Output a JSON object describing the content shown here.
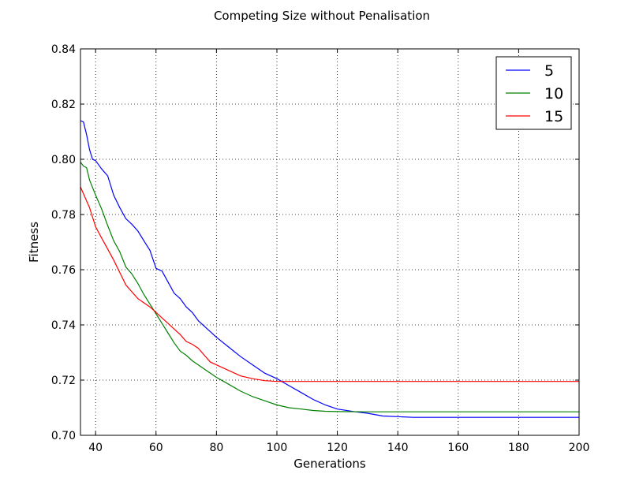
{
  "chart_data": {
    "type": "line",
    "title": "Competing Size without Penalisation",
    "xlabel": "Generations",
    "ylabel": "Fitness",
    "xlim": [
      35,
      200
    ],
    "ylim": [
      0.7,
      0.84
    ],
    "xticks": [
      40,
      60,
      80,
      100,
      120,
      140,
      160,
      180,
      200
    ],
    "yticks": [
      0.7,
      0.72,
      0.74,
      0.76,
      0.78,
      0.8,
      0.82,
      0.84
    ],
    "xtick_labels": [
      "40",
      "60",
      "80",
      "100",
      "120",
      "140",
      "160",
      "180",
      "200"
    ],
    "ytick_labels": [
      "0.70",
      "0.72",
      "0.74",
      "0.76",
      "0.78",
      "0.80",
      "0.82",
      "0.84"
    ],
    "grid": true,
    "legend_position": "top-right",
    "series": [
      {
        "name": "5",
        "color": "#0000ff",
        "x": [
          35,
          36,
          37,
          38,
          39,
          40,
          42,
          44,
          46,
          48,
          50,
          52,
          54,
          56,
          58,
          60,
          62,
          64,
          66,
          68,
          70,
          72,
          74,
          76,
          78,
          80,
          84,
          88,
          92,
          96,
          100,
          104,
          108,
          112,
          116,
          120,
          126,
          130,
          135,
          145,
          160,
          180,
          200
        ],
        "y": [
          0.814,
          0.8135,
          0.809,
          0.8035,
          0.8,
          0.7995,
          0.7965,
          0.794,
          0.787,
          0.7825,
          0.7785,
          0.7765,
          0.774,
          0.7705,
          0.767,
          0.7605,
          0.7595,
          0.7555,
          0.7515,
          0.7495,
          0.7465,
          0.7445,
          0.7415,
          0.7395,
          0.7375,
          0.7355,
          0.732,
          0.7285,
          0.7255,
          0.7225,
          0.7205,
          0.718,
          0.7155,
          0.713,
          0.711,
          0.7095,
          0.7085,
          0.708,
          0.707,
          0.7065,
          0.7065,
          0.7065,
          0.7065
        ]
      },
      {
        "name": "10",
        "color": "#008000",
        "x": [
          35,
          36,
          37,
          38,
          40,
          42,
          44,
          46,
          48,
          50,
          52,
          54,
          56,
          58,
          60,
          62,
          64,
          66,
          68,
          70,
          72,
          74,
          76,
          78,
          80,
          84,
          88,
          92,
          96,
          100,
          104,
          108,
          112,
          116,
          120,
          130,
          140,
          160,
          180,
          200
        ],
        "y": [
          0.799,
          0.7975,
          0.797,
          0.7925,
          0.787,
          0.782,
          0.776,
          0.7705,
          0.7665,
          0.761,
          0.7585,
          0.755,
          0.751,
          0.7475,
          0.744,
          0.7405,
          0.737,
          0.7335,
          0.7305,
          0.729,
          0.727,
          0.7255,
          0.724,
          0.7225,
          0.721,
          0.7185,
          0.716,
          0.714,
          0.7125,
          0.711,
          0.71,
          0.7095,
          0.709,
          0.7087,
          0.7086,
          0.7085,
          0.7085,
          0.7085,
          0.7085,
          0.7085
        ]
      },
      {
        "name": "15",
        "color": "#ff0000",
        "x": [
          35,
          36,
          38,
          40,
          42,
          44,
          46,
          48,
          50,
          52,
          54,
          56,
          58,
          60,
          62,
          64,
          66,
          68,
          70,
          72,
          74,
          76,
          78,
          80,
          84,
          88,
          92,
          96,
          100,
          103,
          110,
          130,
          160,
          200
        ],
        "y": [
          0.79,
          0.7875,
          0.7825,
          0.7755,
          0.7715,
          0.7675,
          0.7635,
          0.759,
          0.7545,
          0.752,
          0.7495,
          0.748,
          0.7465,
          0.7445,
          0.7425,
          0.7405,
          0.7385,
          0.7365,
          0.734,
          0.733,
          0.7315,
          0.729,
          0.7265,
          0.7255,
          0.7235,
          0.7215,
          0.7205,
          0.7198,
          0.7195,
          0.7195,
          0.7195,
          0.7195,
          0.7195,
          0.7195
        ]
      }
    ]
  }
}
